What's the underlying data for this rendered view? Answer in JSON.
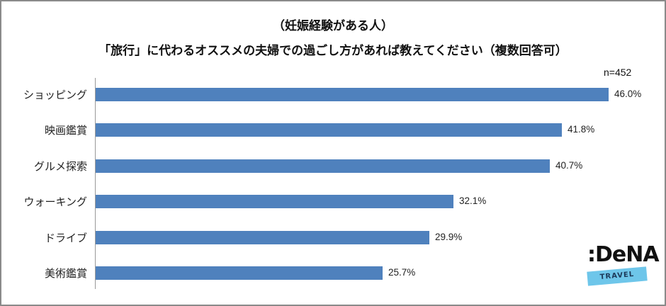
{
  "header": {
    "subtitle": "（妊娠経験がある人）",
    "title": "「旅行」に代わるオススメの夫婦での過ごし方があれば教えてください（複数回答可）",
    "sample_size": "n=452"
  },
  "logo": {
    "brand": ":DeNA",
    "tagline": "TRAVEL",
    "band_color": "#6ec6ea"
  },
  "chart_data": {
    "type": "bar",
    "orientation": "horizontal",
    "title": "「旅行」に代わるオススメの夫婦での過ごし方があれば教えてください（複数回答可）",
    "subtitle": "（妊娠経験がある人）",
    "annotation": "n=452",
    "categories": [
      "ショッピング",
      "映画鑑賞",
      "グルメ探索",
      "ウォーキング",
      "ドライブ",
      "美術鑑賞"
    ],
    "values": [
      46.0,
      41.8,
      40.7,
      32.1,
      29.9,
      25.7
    ],
    "value_labels": [
      "46.0%",
      "41.8%",
      "40.7%",
      "32.1%",
      "29.9%",
      "25.7%"
    ],
    "unit": "%",
    "xlabel": "",
    "ylabel": "",
    "grid": false,
    "legend": null,
    "bar_color": "#4f81bd"
  }
}
